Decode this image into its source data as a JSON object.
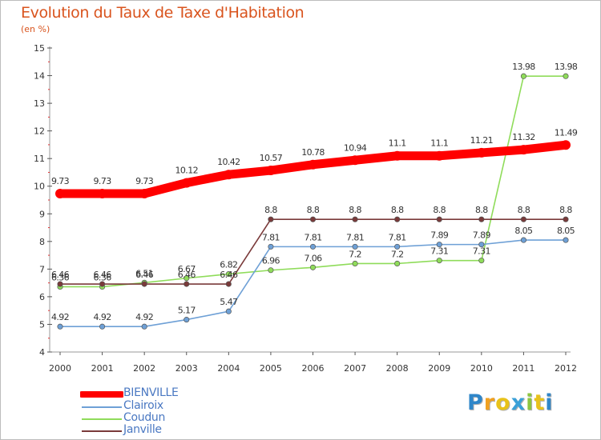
{
  "chart_data": {
    "type": "line",
    "title": "Evolution du Taux de Taxe d'Habitation",
    "subtitle": "(en %)",
    "x": [
      "2000",
      "2001",
      "2002",
      "2003",
      "2004",
      "2005",
      "2006",
      "2007",
      "2008",
      "2009",
      "2010",
      "2011",
      "2012"
    ],
    "ylim": [
      4,
      15
    ],
    "yticks": [
      "4",
      "5",
      "6",
      "7",
      "8",
      "9",
      "10",
      "11",
      "12",
      "13",
      "14",
      "15"
    ],
    "grid": false,
    "legend_position": "bottom-left",
    "series": [
      {
        "name": "BIENVILLE",
        "color": "#ff0000",
        "values": [
          9.73,
          9.73,
          9.73,
          10.12,
          10.42,
          10.57,
          10.78,
          10.94,
          11.1,
          11.1,
          11.21,
          11.32,
          11.49
        ],
        "labels": [
          "9.73",
          "9.73",
          "9.73",
          "10.12",
          "10.42",
          "10.57",
          "10.78",
          "10.94",
          "11.1",
          "11.1",
          "11.21",
          "11.32",
          "11.49"
        ]
      },
      {
        "name": "Clairoix",
        "color": "#6ea0d6",
        "values": [
          4.92,
          4.92,
          4.92,
          5.17,
          5.47,
          7.81,
          7.81,
          7.81,
          7.81,
          7.89,
          7.89,
          8.05,
          8.05
        ],
        "labels": [
          "4.92",
          "4.92",
          "4.92",
          "5.17",
          "5.47",
          "7.81",
          "7.81",
          "7.81",
          "7.81",
          "7.89",
          "7.89",
          "8.05",
          "8.05"
        ]
      },
      {
        "name": "Coudun",
        "color": "#8fdc5a",
        "values": [
          6.36,
          6.36,
          6.51,
          6.67,
          6.82,
          6.96,
          7.06,
          7.2,
          7.2,
          7.31,
          7.31,
          13.98,
          13.98
        ],
        "labels": [
          "6.36",
          "6.36",
          "6.51",
          "6.67",
          "6.82",
          "6.96",
          "7.06",
          "7.2",
          "7.2",
          "7.31",
          "7.31",
          "13.98",
          "13.98"
        ]
      },
      {
        "name": "Janville",
        "color": "#7a3a3a",
        "values": [
          6.46,
          6.46,
          6.46,
          6.46,
          6.46,
          8.8,
          8.8,
          8.8,
          8.8,
          8.8,
          8.8,
          8.8,
          8.8
        ],
        "labels": [
          "6.46",
          "6.46",
          "6.46",
          "6.46",
          "6.46",
          "8.8",
          "8.8",
          "8.8",
          "8.8",
          "8.8",
          "8.8",
          "8.8",
          "8.8"
        ]
      }
    ]
  },
  "legend": {
    "items": [
      {
        "label": "BIENVILLE",
        "color": "#ff0000"
      },
      {
        "label": "Clairoix",
        "color": "#6ea0d6"
      },
      {
        "label": "Coudun",
        "color": "#8fdc5a"
      },
      {
        "label": "Janville",
        "color": "#7a3a3a"
      }
    ]
  },
  "logo": {
    "letters": [
      {
        "ch": "P",
        "color": "#2f86c9"
      },
      {
        "ch": "r",
        "color": "#f0a020"
      },
      {
        "ch": "o",
        "color": "#e8c21a"
      },
      {
        "ch": "x",
        "color": "#3aa0d8"
      },
      {
        "ch": "i",
        "color": "#8cc63f"
      },
      {
        "ch": "t",
        "color": "#e8c21a"
      },
      {
        "ch": "i",
        "color": "#2f86c9"
      }
    ]
  }
}
